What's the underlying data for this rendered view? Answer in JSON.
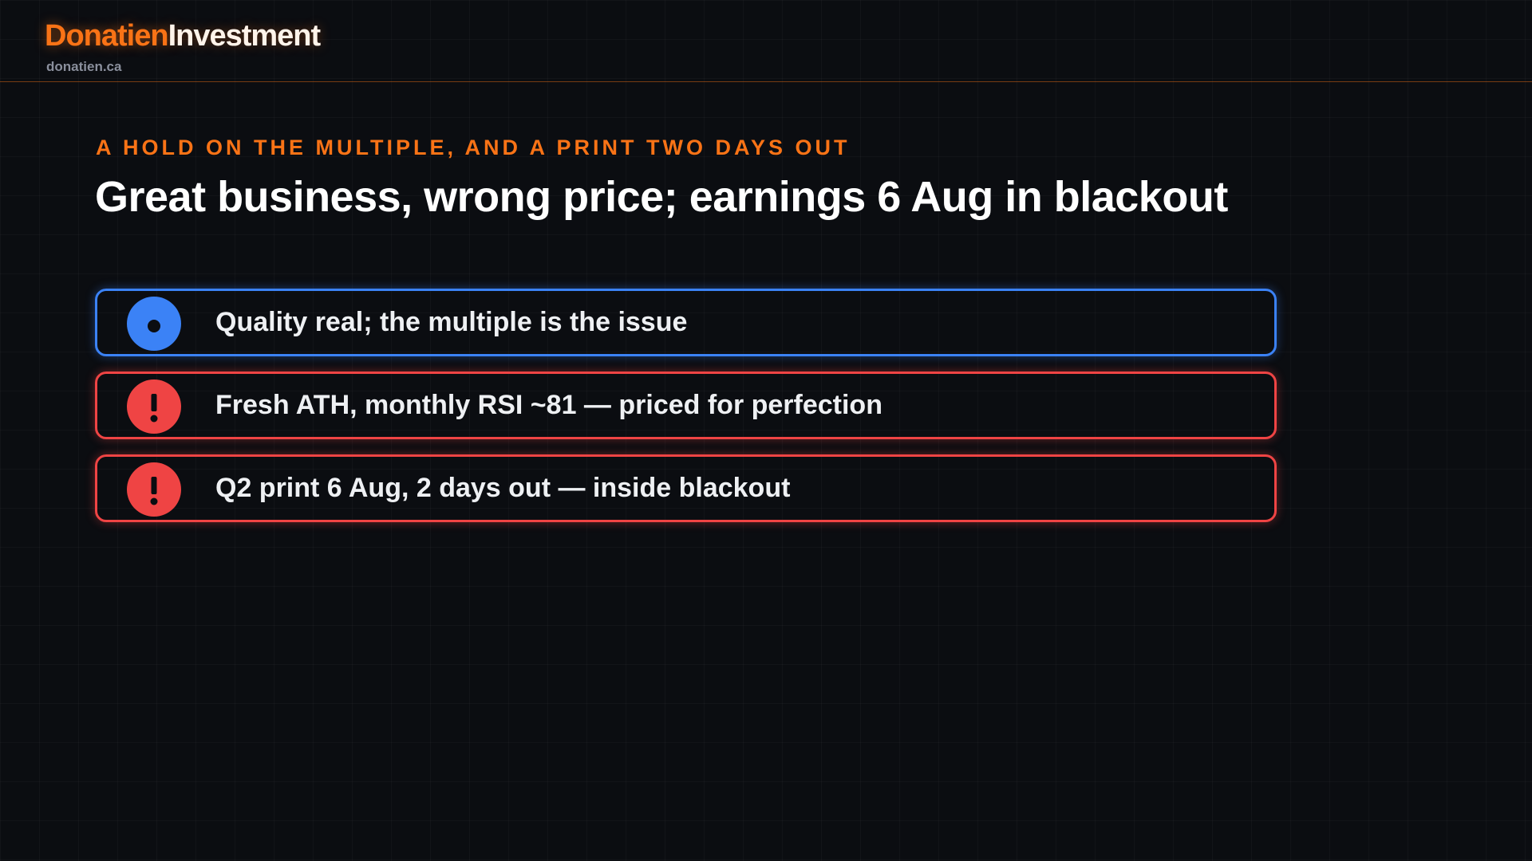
{
  "header": {
    "brand_primary": "Donatien",
    "brand_secondary": "Investment",
    "site": "donatien.ca"
  },
  "kicker": "A HOLD ON THE MULTIPLE, AND A PRINT TWO DAYS OUT",
  "title": "Great business, wrong price; earnings 6 Aug in blackout",
  "items": [
    {
      "text": "Quality real; the multiple is the issue",
      "color": "#3b82f6",
      "icon": "dot"
    },
    {
      "text": "Fresh ATH, monthly RSI ~81 — priced for perfection",
      "color": "#ef4444",
      "icon": "exclamation"
    },
    {
      "text": "Q2 print 6 Aug, 2 days out — inside blackout",
      "color": "#ef4444",
      "icon": "exclamation"
    }
  ]
}
